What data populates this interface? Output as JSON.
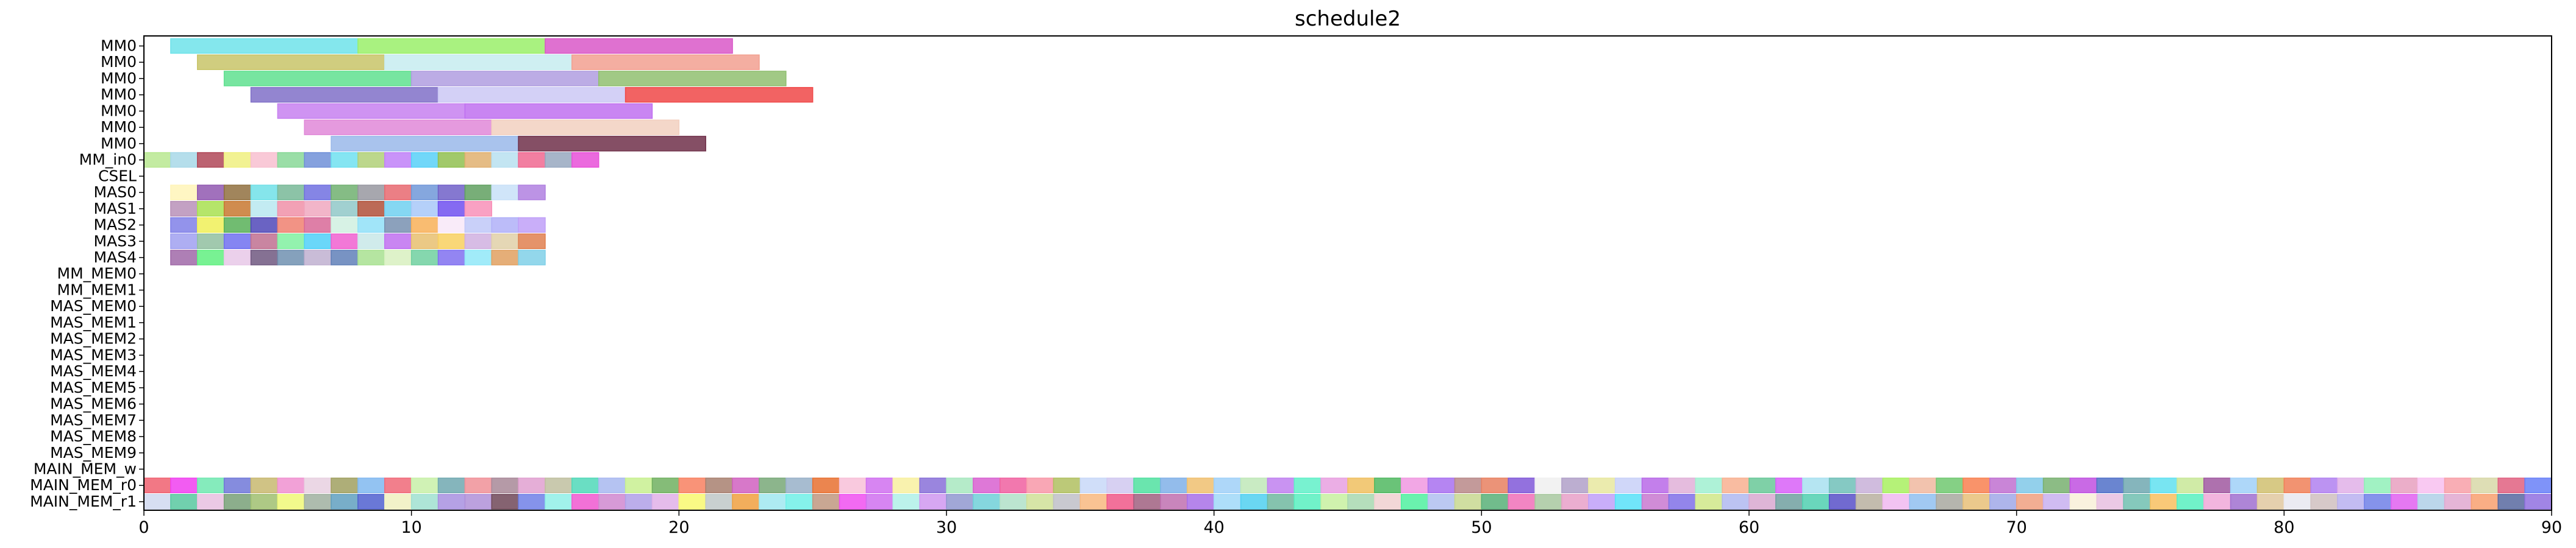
{
  "chart_data": {
    "type": "gantt",
    "title": "schedule2",
    "xlabel": "",
    "ylabel": "",
    "xlim": [
      0,
      90
    ],
    "xticks": [
      0,
      10,
      20,
      30,
      40,
      50,
      60,
      70,
      80,
      90
    ],
    "rows": [
      "MM0",
      "MM0",
      "MM0",
      "MM0",
      "MM0",
      "MM0",
      "MM0",
      "MM_in0",
      "CSEL",
      "MAS0",
      "MAS1",
      "MAS2",
      "MAS3",
      "MAS4",
      "MM_MEM0",
      "MM_MEM1",
      "MAS_MEM0",
      "MAS_MEM1",
      "MAS_MEM2",
      "MAS_MEM3",
      "MAS_MEM4",
      "MAS_MEM5",
      "MAS_MEM6",
      "MAS_MEM7",
      "MAS_MEM8",
      "MAS_MEM9",
      "MAIN_MEM_w",
      "MAIN_MEM_r0",
      "MAIN_MEM_r1"
    ],
    "intervals": [
      {
        "row": 0,
        "start": 1,
        "end": 8,
        "color": "#6fe3ea"
      },
      {
        "row": 0,
        "start": 8,
        "end": 15,
        "color": "#9af06a"
      },
      {
        "row": 0,
        "start": 15,
        "end": 22,
        "color": "#d958c8"
      },
      {
        "row": 1,
        "start": 2,
        "end": 9,
        "color": "#c8c468"
      },
      {
        "row": 1,
        "start": 9,
        "end": 16,
        "color": "#c7ecf0"
      },
      {
        "row": 1,
        "start": 16,
        "end": 23,
        "color": "#f2a090"
      },
      {
        "row": 2,
        "start": 3,
        "end": 10,
        "color": "#5fe08f"
      },
      {
        "row": 2,
        "start": 10,
        "end": 17,
        "color": "#b09ee0"
      },
      {
        "row": 2,
        "start": 17,
        "end": 24,
        "color": "#90c070"
      },
      {
        "row": 3,
        "start": 4,
        "end": 11,
        "color": "#8070c8"
      },
      {
        "row": 3,
        "start": 11,
        "end": 18,
        "color": "#cbc8f5"
      },
      {
        "row": 3,
        "start": 18,
        "end": 25,
        "color": "#f04848"
      },
      {
        "row": 4,
        "start": 5,
        "end": 12,
        "color": "#c780f0"
      },
      {
        "row": 4,
        "start": 12,
        "end": 19,
        "color": "#c070f0"
      },
      {
        "row": 5,
        "start": 6,
        "end": 13,
        "color": "#e088d8"
      },
      {
        "row": 5,
        "start": 13,
        "end": 20,
        "color": "#f2d0c0"
      },
      {
        "row": 6,
        "start": 7,
        "end": 14,
        "color": "#9ab8ea"
      },
      {
        "row": 6,
        "start": 14,
        "end": 21,
        "color": "#70304a"
      }
    ],
    "unit_rows": [
      {
        "row": 7,
        "start": 0,
        "colors": [
          "#b8e890",
          "#a8d8e8",
          "#b04858",
          "#f0f080",
          "#f8c0d0",
          "#88d898",
          "#7090d8",
          "#70e0f0",
          "#b0d078",
          "#c080f8",
          "#58d0f8",
          "#90c050",
          "#e0b070",
          "#b8e0f0",
          "#f06890",
          "#98a8c0",
          "#e850d8"
        ]
      },
      {
        "row": 9,
        "start": 1,
        "colors": [
          "#fff4b8",
          "#9058b0",
          "#907040",
          "#70e0e8",
          "#78b898",
          "#7070e0",
          "#70b070",
          "#9898a0",
          "#e86870",
          "#7098d8",
          "#7060c8",
          "#60a060",
          "#c8e0f8",
          "#b080e0"
        ]
      },
      {
        "row": 10,
        "start": 1,
        "colors": [
          "#b890b8",
          "#a8e050",
          "#c87830",
          "#b8e8f0",
          "#f090a8",
          "#f0a8c0",
          "#90c8c8",
          "#b05038",
          "#70d0f0",
          "#a8c8f8",
          "#7050f0",
          "#f890b8"
        ]
      },
      {
        "row": 11,
        "start": 1,
        "colors": [
          "#8080e8",
          "#f0f058",
          "#58b058",
          "#5048b8",
          "#f08070",
          "#d86898",
          "#d0f0e0",
          "#90e0f8",
          "#7890b0",
          "#f8b058",
          "#f8e8f8",
          "#c0c8f8",
          "#b0b0f8",
          "#c0a0f8"
        ]
      },
      {
        "row": 12,
        "start": 1,
        "colors": [
          "#a0a0f0",
          "#90c0a0",
          "#7070f0",
          "#c07090",
          "#80f0a0",
          "#50d0f8",
          "#f060d0",
          "#c8e8e8",
          "#c070f0",
          "#e8c070",
          "#f8d060",
          "#d0b0e0",
          "#e0d0a8",
          "#e08050"
        ]
      },
      {
        "row": 13,
        "start": 1,
        "colors": [
          "#a068a8",
          "#60f080",
          "#e8c8e8",
          "#705880",
          "#7090b0",
          "#c0b0d0",
          "#6080b8",
          "#a8e090",
          "#d8f0c0",
          "#70d0a0",
          "#8070f0",
          "#90e8f8",
          "#e0a060",
          "#80d0e8"
        ]
      },
      {
        "row": 27,
        "start": 0,
        "colors": [
          "#f06070",
          "#f040f0",
          "#70e8b0",
          "#7078d8",
          "#c8b870",
          "#f090d0",
          "#e8d0e0",
          "#a0a060",
          "#80b8f0",
          "#f06878",
          "#c8f0a8",
          "#70a8b0",
          "#f09098",
          "#a88898",
          "#e0a0d0",
          "#c0c0a0",
          "#50d8b8",
          "#a8b8f0",
          "#c8f090",
          "#70b060",
          "#f88060",
          "#a88070",
          "#d060c0",
          "#78a878",
          "#98b0c8",
          "#e87030",
          "#f8c0d8",
          "#d070f0",
          "#f8f0a0",
          "#8870d8",
          "#a8e8c0",
          "#d860d0",
          "#f060a0",
          "#f898a8",
          "#b0c060",
          "#c8d8f8",
          "#d0c8f0",
          "#50e0a0",
          "#80b0e8",
          "#f0c070",
          "#a0d0f8",
          "#c0e8b8",
          "#c080f0",
          "#60f0c8",
          "#e8a0e0",
          "#f0c060",
          "#50b860",
          "#f098e0",
          "#a870f0",
          "#b88888",
          "#e88060",
          "#8058d8",
          "#f0f0f0",
          "#b0a0c8",
          "#e8e8a0",
          "#c8d0f8",
          "#b868e8",
          "#e0b0d8",
          "#a0f0d0",
          "#f8b090",
          "#68c898",
          "#d860f8",
          "#a8e0f0",
          "#70c0b8",
          "#c8b0d8",
          "#a8f060",
          "#f0b8a0",
          "#70c870",
          "#f88050",
          "#c070d0",
          "#80c8e8",
          "#78b070",
          "#c050e0",
          "#5070c8",
          "#70a8b0",
          "#60e0f0",
          "#c8e898",
          "#a058a0",
          "#a0d0f8",
          "#d0c070",
          "#f08058",
          "#b080f0",
          "#e0b0e8",
          "#90f0b8",
          "#e8a0c0",
          "#f8c0f0",
          "#f8a0a8",
          "#d8d8a8",
          "#e06080",
          "#6880f8"
        ]
      },
      {
        "row": 28,
        "start": 0,
        "colors": [
          "#d0d8f0",
          "#58c8a0",
          "#e8c0e0",
          "#78a078",
          "#a0c070",
          "#f0f878",
          "#a0b0a0",
          "#60a0c0",
          "#5060d0",
          "#f0f0c0",
          "#a0e0d0",
          "#a890e0",
          "#b090d8",
          "#704858",
          "#7080e8",
          "#90f0e8",
          "#f058d0",
          "#d088d0",
          "#b0a0e8",
          "#e0b0e8",
          "#f8f870",
          "#c0c8c8",
          "#f0a040",
          "#a0e8f0",
          "#70f0e8",
          "#c09880",
          "#f050f0",
          "#d070f0",
          "#b0f0e8",
          "#d098f0",
          "#9098d0",
          "#70d0d8",
          "#b0e0c8",
          "#d0e098",
          "#c0c0c8",
          "#f8b880",
          "#f05888",
          "#a06080",
          "#c070b0",
          "#a870e8",
          "#a0d8f8",
          "#50d0f0",
          "#70b8a0",
          "#58f0c0",
          "#c8f0a0",
          "#a8d8b0",
          "#f0d0d0",
          "#50f0a0",
          "#b0c0f0",
          "#c8d890",
          "#58b078",
          "#f070b8",
          "#a8c8a0",
          "#e8a0c8",
          "#c0a0f8",
          "#58e0f8",
          "#c878d0",
          "#8070e8",
          "#d0e888",
          "#b0b8f0",
          "#d8a8d0",
          "#70a0a0",
          "#50d0b0",
          "#5850c8",
          "#b8b0a0",
          "#f0b8f0",
          "#90c0f0",
          "#a8a8a0",
          "#e8c078",
          "#a0a8e8",
          "#f0a080",
          "#c8b0f0",
          "#f8f0d8",
          "#e8c0e0",
          "#70c0b0",
          "#f8c060",
          "#58f0c0",
          "#f0a8d8",
          "#a070d0",
          "#e0c8a0",
          "#e8e8f0",
          "#d0c0c0",
          "#b8b0f0",
          "#7080e8",
          "#e060f0",
          "#b0d0e8",
          "#e0a8d0",
          "#f8a070",
          "#5868a0",
          "#9070e0"
        ]
      }
    ]
  }
}
